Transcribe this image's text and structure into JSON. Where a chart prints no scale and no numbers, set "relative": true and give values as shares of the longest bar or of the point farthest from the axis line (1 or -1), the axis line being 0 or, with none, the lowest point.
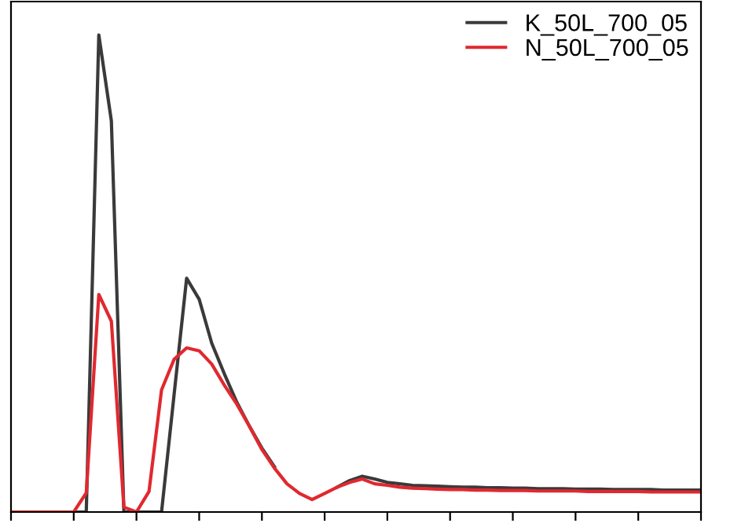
{
  "chart_data": {
    "type": "line",
    "relative": true,
    "legend": "top right",
    "categories": [
      null,
      null,
      null,
      null,
      null,
      null,
      null,
      null,
      null,
      null,
      null,
      null,
      null,
      null,
      null,
      null,
      null,
      null,
      null,
      null,
      null,
      null,
      null,
      null,
      null,
      null,
      null,
      null,
      null,
      null,
      null,
      null,
      null,
      null,
      null,
      null,
      null,
      null,
      null,
      null,
      null,
      null,
      null,
      null,
      null,
      null,
      null,
      null,
      null,
      null,
      null,
      null,
      null,
      null,
      null,
      null
    ],
    "series": [
      {
        "name": "K_50L_700_05",
        "color": "#3a3a3a",
        "values": [
          0,
          0,
          0,
          0,
          0,
          0,
          0,
          1.0,
          0.82,
          0,
          0,
          0,
          0,
          0.246,
          0.49,
          0.446,
          0.354,
          0.29,
          0.23,
          0.18,
          0.134,
          0.095,
          null,
          null,
          null,
          null,
          0.052,
          0.066,
          0.075,
          0.069,
          0.062,
          0.059,
          0.056,
          0.055,
          0.054,
          0.053,
          0.052,
          0.052,
          0.051,
          0.051,
          0.05,
          0.05,
          0.049,
          0.049,
          0.049,
          0.048,
          0.048,
          0.048,
          0.047,
          0.047,
          0.047,
          0.047,
          0.046,
          0.046,
          0.046,
          0.046
        ]
      },
      {
        "name": "N_50L_700_05",
        "color": "#e0292f",
        "values": [
          0,
          0,
          0,
          0,
          0,
          0,
          0.04,
          0.456,
          0.4,
          0.01,
          0,
          0.043,
          0.256,
          0.32,
          0.344,
          0.338,
          0.31,
          0.266,
          0.226,
          0.18,
          0.131,
          0.092,
          0.059,
          0.039,
          0.026,
          0.039,
          0.052,
          0.062,
          0.069,
          0.059,
          0.056,
          0.052,
          0.05,
          0.049,
          0.048,
          0.047,
          0.047,
          0.046,
          0.046,
          0.045,
          0.045,
          0.045,
          0.044,
          0.044,
          0.044,
          0.044,
          0.043,
          0.043,
          0.043,
          0.043,
          0.043,
          0.042,
          0.042,
          0.042,
          0.042,
          0.042
        ]
      }
    ]
  }
}
